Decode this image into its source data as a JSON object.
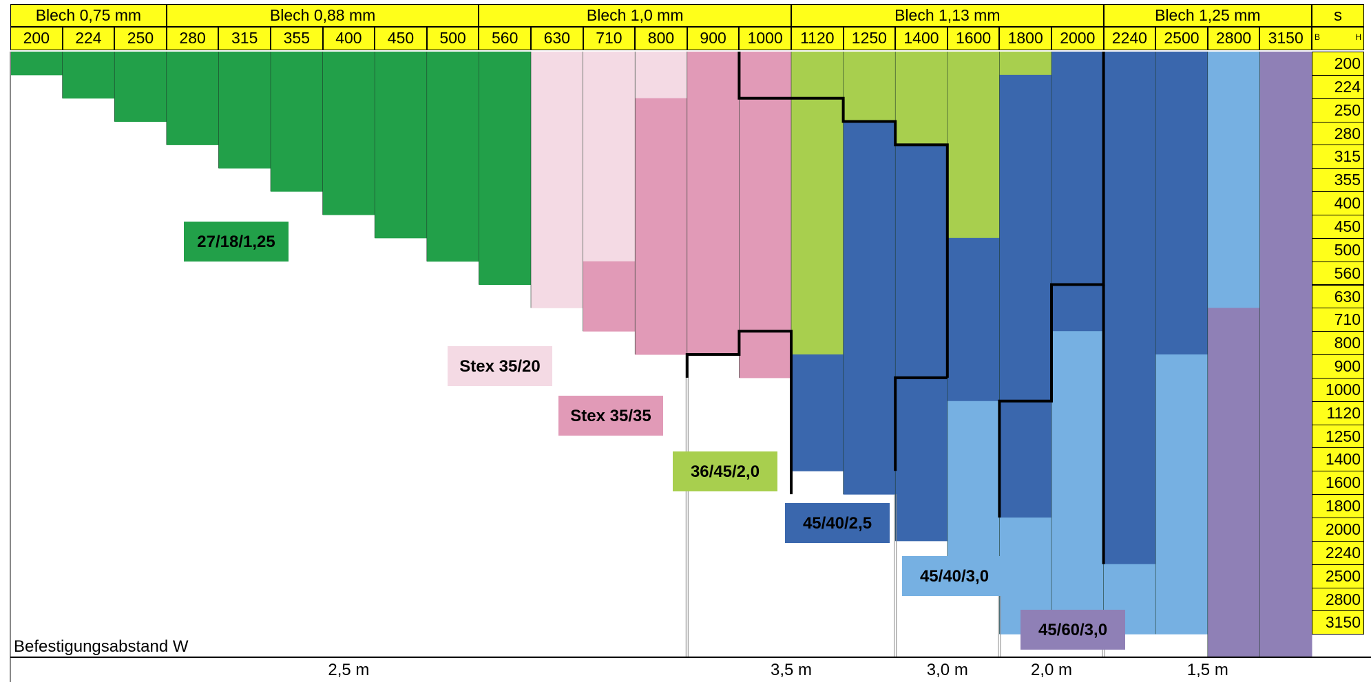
{
  "chart_data": {
    "type": "heatmap",
    "title": "",
    "groups": [
      {
        "label": "Blech 0,75 mm",
        "span": 3
      },
      {
        "label": "Blech 0,88 mm",
        "span": 6
      },
      {
        "label": "Blech 1,0 mm",
        "span": 6
      },
      {
        "label": "Blech 1,13 mm",
        "span": 6
      },
      {
        "label": "Blech 1,25 mm",
        "span": 4
      }
    ],
    "s_label": "s",
    "corner": {
      "b": "B",
      "h": "H"
    },
    "columns_B": [
      "200",
      "224",
      "250",
      "280",
      "315",
      "355",
      "400",
      "450",
      "500",
      "560",
      "630",
      "710",
      "800",
      "900",
      "1000",
      "1120",
      "1250",
      "1400",
      "1600",
      "1800",
      "2000",
      "2240",
      "2500",
      "2800",
      "3150"
    ],
    "rows_H": [
      "200",
      "224",
      "250",
      "280",
      "315",
      "355",
      "400",
      "450",
      "500",
      "560",
      "630",
      "710",
      "800",
      "900",
      "1000",
      "1120",
      "1250",
      "1400",
      "1600",
      "1800",
      "2000",
      "2240",
      "2500",
      "2800",
      "3150"
    ],
    "profiles": [
      {
        "name": "27/18/1,25",
        "color": "#22a049",
        "text_color": "#000000"
      },
      {
        "name": "Stex 35/20",
        "color": "#f4dae4",
        "text_color": "#000000"
      },
      {
        "name": "Stex 35/35",
        "color": "#e19ab7",
        "text_color": "#000000"
      },
      {
        "name": "36/45/2,0",
        "color": "#a8cf4e",
        "text_color": "#000000"
      },
      {
        "name": "45/40/2,5",
        "color": "#3a67ad",
        "text_color": "#000000"
      },
      {
        "name": "45/40/3,0",
        "color": "#76b0e2",
        "text_color": "#000000"
      },
      {
        "name": "45/60/3,0",
        "color": "#8f80b6",
        "text_color": "#000000"
      }
    ],
    "cells": [
      [
        [
          1,
          0
        ]
      ],
      [
        [
          2,
          0
        ]
      ],
      [
        [
          3,
          0
        ]
      ],
      [
        [
          4,
          0
        ]
      ],
      [
        [
          5,
          0
        ]
      ],
      [
        [
          6,
          0
        ]
      ],
      [
        [
          7,
          0
        ]
      ],
      [
        [
          8,
          0
        ]
      ],
      [
        [
          9,
          0
        ]
      ],
      [
        [
          10,
          0
        ]
      ],
      [
        [
          11,
          1
        ]
      ],
      [
        [
          9,
          1
        ],
        [
          12,
          2
        ]
      ],
      [
        [
          2,
          1
        ],
        [
          13,
          2
        ]
      ],
      [
        [
          13,
          2
        ]
      ],
      [
        [
          2,
          2
        ],
        [
          14,
          2
        ]
      ],
      [
        [
          13,
          3
        ],
        [
          18,
          4
        ]
      ],
      [
        [
          3,
          3
        ],
        [
          19,
          4
        ]
      ],
      [
        [
          4,
          3
        ],
        [
          21,
          4
        ]
      ],
      [
        [
          8,
          3
        ],
        [
          15,
          4
        ],
        [
          22,
          5
        ]
      ],
      [
        [
          1,
          3
        ],
        [
          20,
          4
        ],
        [
          25,
          5
        ]
      ],
      [
        [
          12,
          4
        ],
        [
          24,
          5
        ]
      ],
      [
        [
          22,
          4
        ],
        [
          25,
          5
        ]
      ],
      [
        [
          13,
          4
        ],
        [
          25,
          5
        ]
      ],
      [
        [
          11,
          5
        ],
        [
          26,
          6
        ]
      ],
      [
        [
          26,
          6
        ]
      ]
    ],
    "boundary_rows": [
      14,
      15,
      15,
      16,
      17,
      18,
      19,
      20,
      20,
      22
    ],
    "fastening_title": "Befestigungsabstand W",
    "fastening_spacing": [
      {
        "label": "2,5 m",
        "from": 0,
        "to": 13
      },
      {
        "label": "3,5 m",
        "from": 13,
        "to": 17
      },
      {
        "label": "3,0 m",
        "from": 17,
        "to": 19
      },
      {
        "label": "2,0 m",
        "from": 19,
        "to": 21
      },
      {
        "label": "1,5 m",
        "from": 21,
        "to": 25
      }
    ]
  }
}
